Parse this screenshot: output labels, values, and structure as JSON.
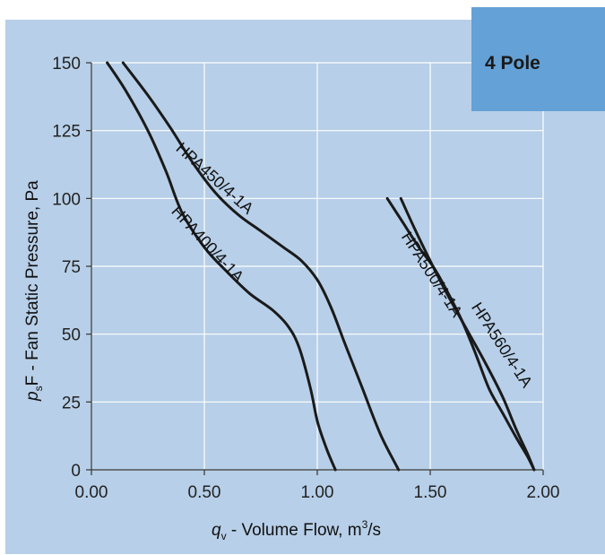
{
  "colors": {
    "background": "#b7cfe8",
    "badge": "#64a1d6",
    "grid": "#ffffff",
    "curve": "#1a1a1a",
    "axis": "#333333"
  },
  "badge": {
    "label": "4 Pole"
  },
  "chart_data": {
    "type": "line",
    "title": "",
    "xlabel": {
      "symbol": "q",
      "subscript": "v",
      "text": " - Volume Flow, m",
      "superscript": "3",
      "suffix": "/s"
    },
    "ylabel": {
      "symbol": "p",
      "subscript": "s",
      "text": "F - Fan Static Pressure, Pa"
    },
    "xlim": [
      0,
      2
    ],
    "ylim": [
      0,
      150
    ],
    "x_ticks": [
      0,
      0.5,
      1,
      1.5,
      2
    ],
    "x_tick_labels": [
      "0.00",
      "0.50",
      "1.00",
      "1.50",
      "2.00"
    ],
    "y_ticks": [
      0,
      25,
      50,
      75,
      100,
      125,
      150
    ],
    "y_tick_labels": [
      "0",
      "25",
      "50",
      "75",
      "100",
      "125",
      "150"
    ],
    "grid": true,
    "series": [
      {
        "name": "HPA400/4-1A",
        "x": [
          0.07,
          0.15,
          0.25,
          0.33,
          0.4,
          0.5,
          0.6,
          0.7,
          0.8,
          0.87,
          0.92,
          0.97,
          1.0,
          1.04,
          1.08
        ],
        "y": [
          150,
          140,
          125,
          110,
          95,
          82,
          73,
          65,
          59,
          53,
          45,
          30,
          18,
          8,
          0
        ]
      },
      {
        "name": "HPA450/4-1A",
        "x": [
          0.14,
          0.25,
          0.35,
          0.45,
          0.55,
          0.65,
          0.75,
          0.85,
          0.93,
          1.0,
          1.06,
          1.12,
          1.2,
          1.28,
          1.36
        ],
        "y": [
          150,
          138,
          126,
          113,
          102,
          94,
          88,
          82,
          77,
          70,
          60,
          47,
          30,
          13,
          0
        ]
      },
      {
        "name": "HPA500/4-1A",
        "x": [
          1.31,
          1.38,
          1.45,
          1.52,
          1.58,
          1.64,
          1.7,
          1.76,
          1.82,
          1.88,
          1.93,
          1.96
        ],
        "y": [
          100,
          91,
          82,
          74,
          65,
          55,
          43,
          30,
          21,
          12,
          5,
          0
        ]
      },
      {
        "name": "HPA560/4-1A",
        "x": [
          1.37,
          1.43,
          1.5,
          1.58,
          1.66,
          1.74,
          1.82,
          1.88,
          1.93,
          1.96
        ],
        "y": [
          100,
          89,
          77,
          64,
          52,
          40,
          27,
          15,
          6,
          0
        ]
      }
    ]
  }
}
